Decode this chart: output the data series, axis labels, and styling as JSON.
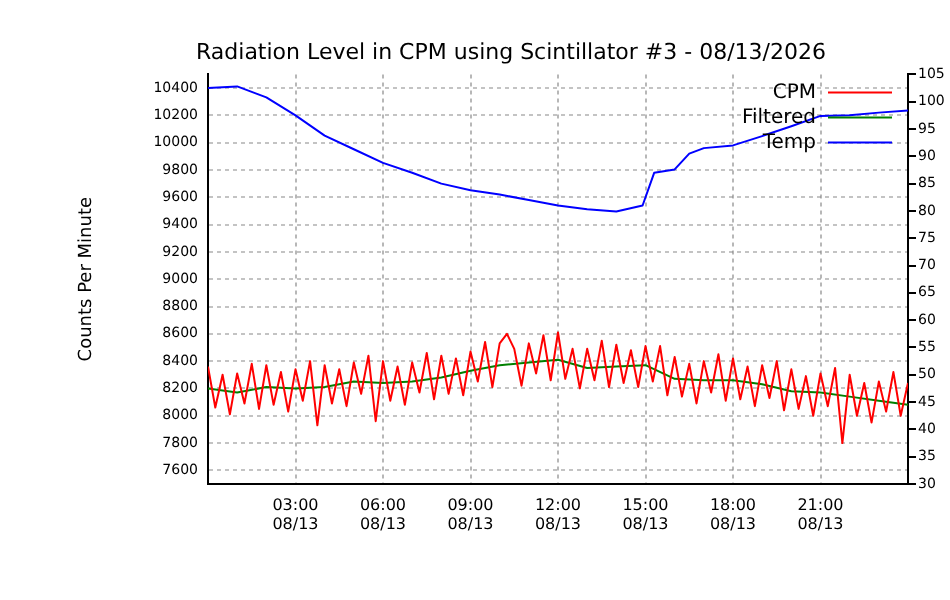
{
  "chart_data": {
    "type": "line",
    "title": "Radiation Level in CPM using Scintillator #3 - 08/13/2026",
    "ylabel": "Counts Per Minute",
    "xlim": [
      "2026-08-13T00:00",
      "2026-08-14T00:00"
    ],
    "xticks": [
      {
        "value": "2026-08-13T03:00",
        "label": "03:00\n08/13"
      },
      {
        "value": "2026-08-13T06:00",
        "label": "06:00\n08/13"
      },
      {
        "value": "2026-08-13T09:00",
        "label": "09:00\n08/13"
      },
      {
        "value": "2026-08-13T12:00",
        "label": "12:00\n08/13"
      },
      {
        "value": "2026-08-13T15:00",
        "label": "15:00\n08/13"
      },
      {
        "value": "2026-08-13T18:00",
        "label": "18:00\n08/13"
      },
      {
        "value": "2026-08-13T21:00",
        "label": "21:00\n08/13"
      }
    ],
    "ylim": [
      7500,
      10500
    ],
    "yticks": [
      7600,
      7800,
      8000,
      8200,
      8400,
      8600,
      8800,
      9000,
      9200,
      9400,
      9600,
      9800,
      10000,
      10200,
      10400
    ],
    "y2lim": [
      30,
      105
    ],
    "y2ticks": [
      30,
      35,
      40,
      45,
      50,
      55,
      60,
      65,
      70,
      75,
      80,
      85,
      90,
      95,
      100,
      105
    ],
    "grid": true,
    "legend": "top right",
    "marker": "none",
    "line_style": "solid",
    "series": [
      {
        "name": "CPM",
        "color": "#ff0000",
        "x": [
          "2026-08-13T00:00",
          "2026-08-13T00:15",
          "2026-08-13T00:30",
          "2026-08-13T00:45",
          "2026-08-13T01:00",
          "2026-08-13T01:15",
          "2026-08-13T01:30",
          "2026-08-13T01:45",
          "2026-08-13T02:00",
          "2026-08-13T02:15",
          "2026-08-13T02:30",
          "2026-08-13T02:45",
          "2026-08-13T03:00",
          "2026-08-13T03:15",
          "2026-08-13T03:30",
          "2026-08-13T03:45",
          "2026-08-13T04:00",
          "2026-08-13T04:15",
          "2026-08-13T04:30",
          "2026-08-13T04:45",
          "2026-08-13T05:00",
          "2026-08-13T05:15",
          "2026-08-13T05:30",
          "2026-08-13T05:45",
          "2026-08-13T06:00",
          "2026-08-13T06:15",
          "2026-08-13T06:30",
          "2026-08-13T06:45",
          "2026-08-13T07:00",
          "2026-08-13T07:15",
          "2026-08-13T07:30",
          "2026-08-13T07:45",
          "2026-08-13T08:00",
          "2026-08-13T08:15",
          "2026-08-13T08:30",
          "2026-08-13T08:45",
          "2026-08-13T09:00",
          "2026-08-13T09:15",
          "2026-08-13T09:30",
          "2026-08-13T09:45",
          "2026-08-13T10:00",
          "2026-08-13T10:15",
          "2026-08-13T10:30",
          "2026-08-13T10:45",
          "2026-08-13T11:00",
          "2026-08-13T11:15",
          "2026-08-13T11:30",
          "2026-08-13T11:45",
          "2026-08-13T12:00",
          "2026-08-13T12:15",
          "2026-08-13T12:30",
          "2026-08-13T12:45",
          "2026-08-13T13:00",
          "2026-08-13T13:15",
          "2026-08-13T13:30",
          "2026-08-13T13:45",
          "2026-08-13T14:00",
          "2026-08-13T14:15",
          "2026-08-13T14:30",
          "2026-08-13T14:45",
          "2026-08-13T15:00",
          "2026-08-13T15:15",
          "2026-08-13T15:30",
          "2026-08-13T15:45",
          "2026-08-13T16:00",
          "2026-08-13T16:15",
          "2026-08-13T16:30",
          "2026-08-13T16:45",
          "2026-08-13T17:00",
          "2026-08-13T17:15",
          "2026-08-13T17:30",
          "2026-08-13T17:45",
          "2026-08-13T18:00",
          "2026-08-13T18:15",
          "2026-08-13T18:30",
          "2026-08-13T18:45",
          "2026-08-13T19:00",
          "2026-08-13T19:15",
          "2026-08-13T19:30",
          "2026-08-13T19:45",
          "2026-08-13T20:00",
          "2026-08-13T20:15",
          "2026-08-13T20:30",
          "2026-08-13T20:45",
          "2026-08-13T21:00",
          "2026-08-13T21:15",
          "2026-08-13T21:30",
          "2026-08-13T21:45",
          "2026-08-13T22:00",
          "2026-08-13T22:15",
          "2026-08-13T22:30",
          "2026-08-13T22:45",
          "2026-08-13T23:00",
          "2026-08-13T23:15",
          "2026-08-13T23:30",
          "2026-08-13T23:45",
          "2026-08-14T00:00"
        ],
        "values": [
          8360,
          8060,
          8300,
          8010,
          8310,
          8090,
          8380,
          8050,
          8370,
          8080,
          8320,
          8030,
          8340,
          8110,
          8400,
          7930,
          8370,
          8090,
          8340,
          8070,
          8390,
          8160,
          8440,
          7960,
          8400,
          8110,
          8360,
          8080,
          8390,
          8170,
          8460,
          8120,
          8440,
          8160,
          8420,
          8150,
          8470,
          8250,
          8540,
          8210,
          8530,
          8600,
          8490,
          8220,
          8530,
          8310,
          8590,
          8260,
          8610,
          8270,
          8490,
          8200,
          8490,
          8260,
          8550,
          8210,
          8520,
          8240,
          8480,
          8210,
          8510,
          8250,
          8510,
          8150,
          8430,
          8140,
          8380,
          8090,
          8400,
          8170,
          8450,
          8110,
          8420,
          8120,
          8360,
          8070,
          8370,
          8130,
          8400,
          8040,
          8340,
          8050,
          8290,
          8000,
          8310,
          8070,
          8350,
          7800,
          8300,
          8000,
          8240,
          7950,
          8250,
          8030,
          8320,
          8000,
          8240
        ]
      },
      {
        "name": "Filtered",
        "color": "#008000",
        "x": [
          "2026-08-13T00:00",
          "2026-08-13T01:00",
          "2026-08-13T02:00",
          "2026-08-13T03:00",
          "2026-08-13T04:00",
          "2026-08-13T05:00",
          "2026-08-13T06:00",
          "2026-08-13T07:00",
          "2026-08-13T08:00",
          "2026-08-13T09:00",
          "2026-08-13T10:00",
          "2026-08-13T11:00",
          "2026-08-13T12:00",
          "2026-08-13T13:00",
          "2026-08-13T14:00",
          "2026-08-13T15:00",
          "2026-08-13T16:00",
          "2026-08-13T17:00",
          "2026-08-13T18:00",
          "2026-08-13T19:00",
          "2026-08-13T20:00",
          "2026-08-13T21:00",
          "2026-08-13T22:00",
          "2026-08-13T23:00",
          "2026-08-14T00:00"
        ],
        "values": [
          8200,
          8170,
          8210,
          8200,
          8210,
          8250,
          8240,
          8250,
          8280,
          8330,
          8370,
          8390,
          8410,
          8350,
          8360,
          8370,
          8270,
          8260,
          8260,
          8230,
          8180,
          8170,
          8140,
          8110,
          8080
        ]
      },
      {
        "name": "Temp",
        "color": "#0000ff",
        "axis": "y2",
        "x": [
          "2026-08-13T00:00",
          "2026-08-13T01:00",
          "2026-08-13T02:00",
          "2026-08-13T03:00",
          "2026-08-13T04:00",
          "2026-08-13T05:00",
          "2026-08-13T06:00",
          "2026-08-13T07:00",
          "2026-08-13T08:00",
          "2026-08-13T09:00",
          "2026-08-13T10:00",
          "2026-08-13T11:00",
          "2026-08-13T12:00",
          "2026-08-13T13:00",
          "2026-08-13T14:00",
          "2026-08-13T14:54",
          "2026-08-13T15:18",
          "2026-08-13T16:00",
          "2026-08-13T16:30",
          "2026-08-13T17:00",
          "2026-08-13T18:00",
          "2026-08-13T19:00",
          "2026-08-13T20:00",
          "2026-08-13T21:00",
          "2026-08-13T22:00",
          "2026-08-13T23:00",
          "2026-08-14T00:00"
        ],
        "values": [
          102.5,
          102.8,
          100.8,
          97.5,
          93.8,
          91.3,
          88.8,
          87,
          85,
          83.8,
          83,
          82,
          81,
          80.3,
          79.9,
          81,
          87,
          87.6,
          90.5,
          91.5,
          92,
          93.7,
          95.5,
          97.4,
          97.5,
          98,
          98.4
        ]
      }
    ]
  }
}
